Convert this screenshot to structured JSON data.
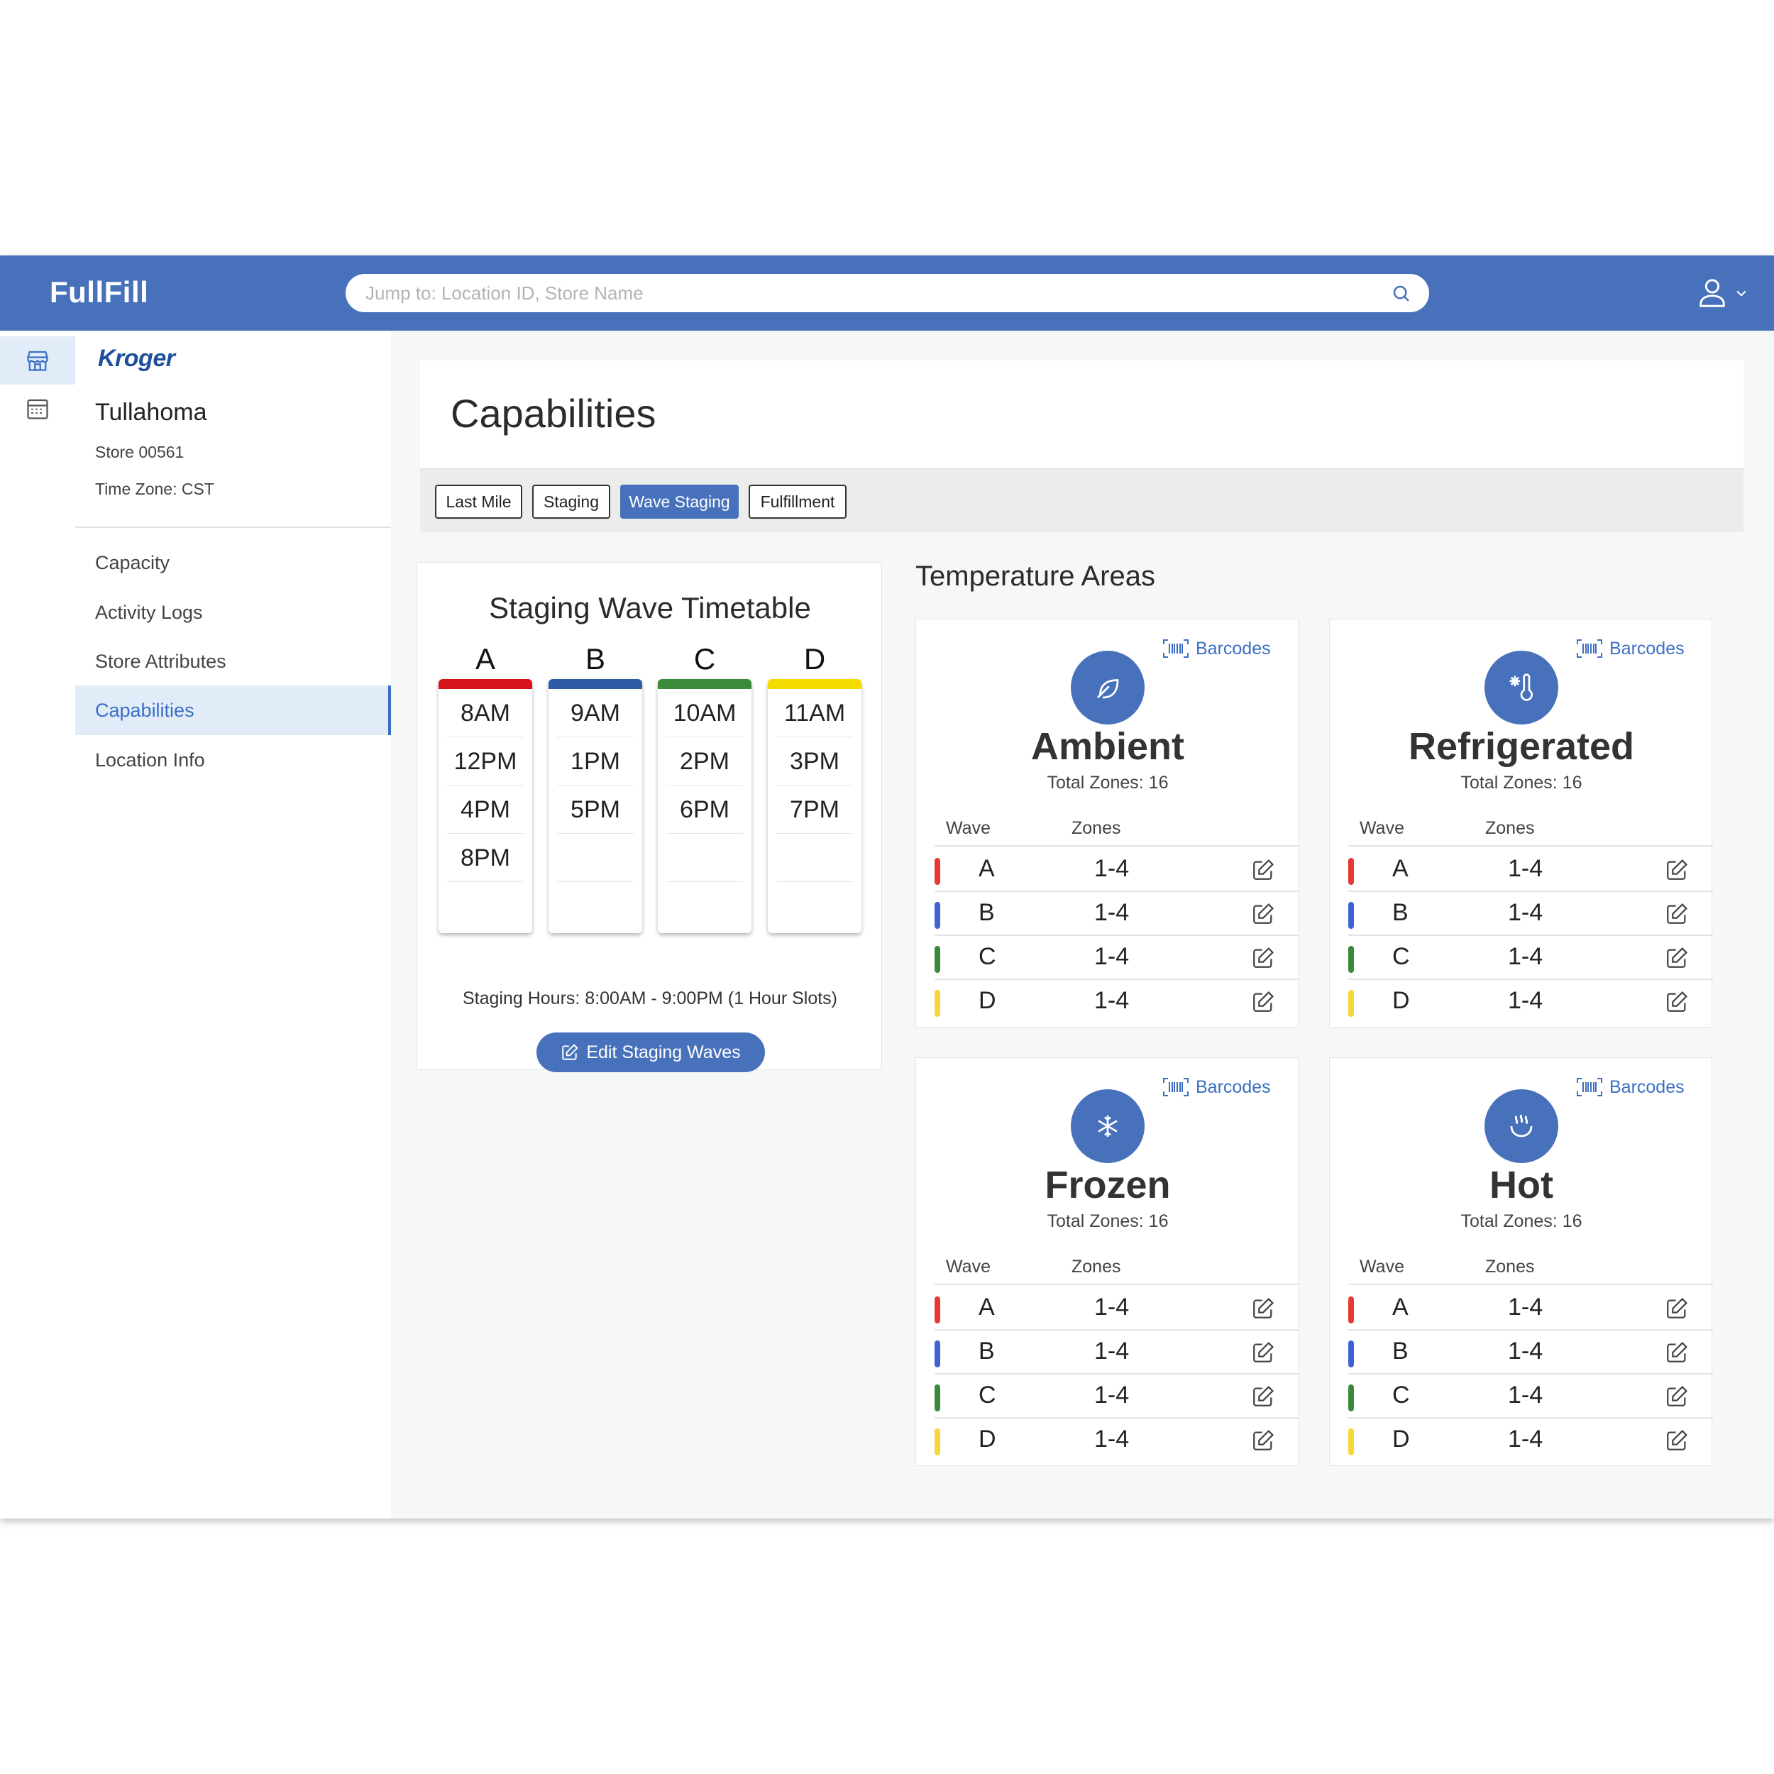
{
  "app": {
    "name": "FullFill"
  },
  "search": {
    "placeholder": "Jump to: Location ID, Store Name"
  },
  "store": {
    "brand": "Kroger",
    "name": "Tullahoma",
    "number": "Store 00561",
    "timezone": "Time Zone: CST"
  },
  "sidebar": {
    "items": [
      {
        "label": "Capacity",
        "active": false
      },
      {
        "label": "Activity Logs",
        "active": false
      },
      {
        "label": "Store Attributes",
        "active": false
      },
      {
        "label": "Capabilities",
        "active": true
      },
      {
        "label": "Location Info",
        "active": false
      }
    ]
  },
  "page": {
    "title": "Capabilities"
  },
  "tabs": [
    {
      "label": "Last Mile",
      "active": false
    },
    {
      "label": "Staging",
      "active": false
    },
    {
      "label": "Wave Staging",
      "active": true
    },
    {
      "label": "Fulfillment",
      "active": false
    }
  ],
  "timetable": {
    "title": "Staging Wave Timetable",
    "columns": [
      {
        "wave": "A",
        "color": "#d8121b",
        "slots": [
          "8AM",
          "12PM",
          "4PM",
          "8PM"
        ]
      },
      {
        "wave": "B",
        "color": "#2d5ba8",
        "slots": [
          "9AM",
          "1PM",
          "5PM",
          ""
        ]
      },
      {
        "wave": "C",
        "color": "#3a8a3a",
        "slots": [
          "10AM",
          "2PM",
          "6PM",
          ""
        ]
      },
      {
        "wave": "D",
        "color": "#f5dc00",
        "slots": [
          "11AM",
          "3PM",
          "7PM",
          ""
        ]
      }
    ],
    "hours": "Staging Hours: 8:00AM - 9:00PM (1 Hour Slots)",
    "edit_button": "Edit Staging Waves"
  },
  "temperature": {
    "title": "Temperature Areas",
    "header_wave": "Wave",
    "header_zones": "Zones",
    "barcodes_label": "Barcodes",
    "areas": [
      {
        "name": "Ambient",
        "icon": "leaf-icon",
        "total": "Total Zones: 16",
        "rows": [
          {
            "wave": "A",
            "zones": "1-4",
            "color": "#e53935"
          },
          {
            "wave": "B",
            "zones": "1-4",
            "color": "#3f63d6"
          },
          {
            "wave": "C",
            "zones": "1-4",
            "color": "#3b8a3b"
          },
          {
            "wave": "D",
            "zones": "1-4",
            "color": "#f7d63a"
          }
        ]
      },
      {
        "name": "Refrigerated",
        "icon": "thermometer-snowflake-icon",
        "total": "Total Zones: 16",
        "rows": [
          {
            "wave": "A",
            "zones": "1-4",
            "color": "#e53935"
          },
          {
            "wave": "B",
            "zones": "1-4",
            "color": "#3f63d6"
          },
          {
            "wave": "C",
            "zones": "1-4",
            "color": "#3b8a3b"
          },
          {
            "wave": "D",
            "zones": "1-4",
            "color": "#f7d63a"
          }
        ]
      },
      {
        "name": "Frozen",
        "icon": "snowflake-icon",
        "total": "Total Zones: 16",
        "rows": [
          {
            "wave": "A",
            "zones": "1-4",
            "color": "#e53935"
          },
          {
            "wave": "B",
            "zones": "1-4",
            "color": "#3f63d6"
          },
          {
            "wave": "C",
            "zones": "1-4",
            "color": "#3b8a3b"
          },
          {
            "wave": "D",
            "zones": "1-4",
            "color": "#f7d63a"
          }
        ]
      },
      {
        "name": "Hot",
        "icon": "heat-icon",
        "total": "Total Zones: 16",
        "rows": [
          {
            "wave": "A",
            "zones": "1-4",
            "color": "#e53935"
          },
          {
            "wave": "B",
            "zones": "1-4",
            "color": "#3f63d6"
          },
          {
            "wave": "C",
            "zones": "1-4",
            "color": "#3b8a3b"
          },
          {
            "wave": "D",
            "zones": "1-4",
            "color": "#f7d63a"
          }
        ]
      }
    ]
  }
}
